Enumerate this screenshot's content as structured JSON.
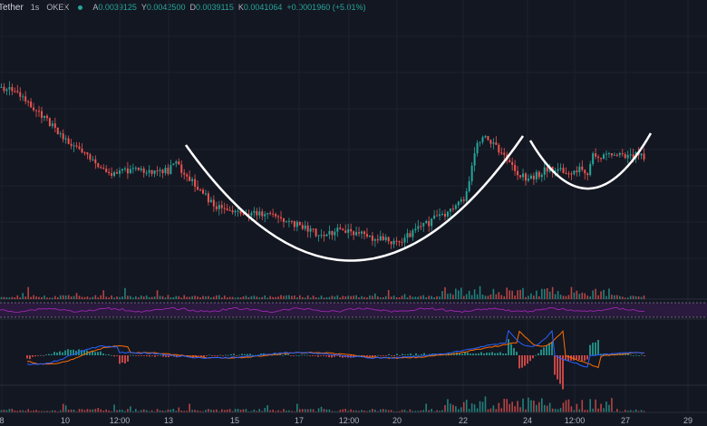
{
  "header": {
    "symbol": "Tether",
    "interval": "1s",
    "exchange": "OKEX",
    "status_color": "#26a69a",
    "ohlc": [
      {
        "key": "A",
        "value": "0.0039125"
      },
      {
        "key": "Y",
        "value": "0.0042500"
      },
      {
        "key": "D",
        "value": "0.0039115"
      },
      {
        "key": "K",
        "value": "0.0041064"
      }
    ],
    "change": "+0.0001960 (+5.01%)"
  },
  "x_axis": {
    "ticks": [
      "8",
      "10",
      "12:00",
      "13",
      "15",
      "17",
      "12:00",
      "20",
      "22",
      "24",
      "12:00",
      "27",
      "29"
    ]
  },
  "colors": {
    "up": "#26a69a",
    "down": "#ef5350",
    "background": "#131722",
    "grid": "#1e222d",
    "cup_drawing": "#ffffff",
    "rsi_band": "#2a1a3d",
    "rsi_line": "#9c27b0",
    "macd_line": "#2962ff",
    "signal_line": "#ff6d00"
  },
  "chart_data": {
    "type": "candlestick",
    "price_path": [
      {
        "x": 0.0,
        "y": 96
      },
      {
        "x": 0.02,
        "y": 102
      },
      {
        "x": 0.05,
        "y": 120
      },
      {
        "x": 0.08,
        "y": 140
      },
      {
        "x": 0.11,
        "y": 160
      },
      {
        "x": 0.13,
        "y": 172
      },
      {
        "x": 0.15,
        "y": 185
      },
      {
        "x": 0.17,
        "y": 192
      },
      {
        "x": 0.2,
        "y": 188
      },
      {
        "x": 0.23,
        "y": 190
      },
      {
        "x": 0.26,
        "y": 188
      },
      {
        "x": 0.265,
        "y": 178
      },
      {
        "x": 0.29,
        "y": 195
      },
      {
        "x": 0.31,
        "y": 212
      },
      {
        "x": 0.33,
        "y": 226
      },
      {
        "x": 0.35,
        "y": 235
      },
      {
        "x": 0.37,
        "y": 233
      },
      {
        "x": 0.4,
        "y": 235
      },
      {
        "x": 0.43,
        "y": 242
      },
      {
        "x": 0.46,
        "y": 248
      },
      {
        "x": 0.49,
        "y": 258
      },
      {
        "x": 0.52,
        "y": 255
      },
      {
        "x": 0.55,
        "y": 258
      },
      {
        "x": 0.58,
        "y": 263
      },
      {
        "x": 0.61,
        "y": 268
      },
      {
        "x": 0.64,
        "y": 256
      },
      {
        "x": 0.67,
        "y": 242
      },
      {
        "x": 0.7,
        "y": 232
      },
      {
        "x": 0.72,
        "y": 215
      },
      {
        "x": 0.735,
        "y": 165
      },
      {
        "x": 0.745,
        "y": 148
      },
      {
        "x": 0.76,
        "y": 158
      },
      {
        "x": 0.78,
        "y": 175
      },
      {
        "x": 0.8,
        "y": 192
      },
      {
        "x": 0.82,
        "y": 198
      },
      {
        "x": 0.84,
        "y": 188
      },
      {
        "x": 0.86,
        "y": 185
      },
      {
        "x": 0.88,
        "y": 190
      },
      {
        "x": 0.9,
        "y": 186
      },
      {
        "x": 0.91,
        "y": 195
      },
      {
        "x": 0.915,
        "y": 172
      }
    ]
  }
}
